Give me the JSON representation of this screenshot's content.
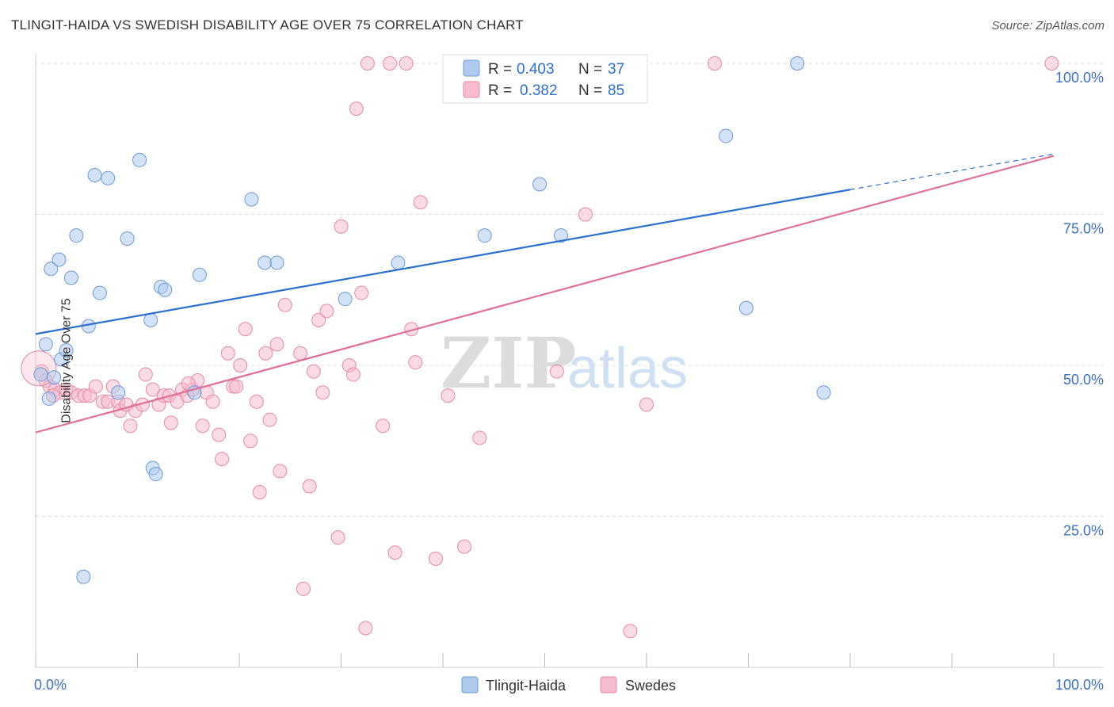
{
  "header": {
    "title": "TLINGIT-HAIDA VS SWEDISH DISABILITY AGE OVER 75 CORRELATION CHART",
    "source": "Source: ZipAtlas.com"
  },
  "watermark": {
    "zip": "ZIP",
    "atlas": "atlas"
  },
  "colors": {
    "blue_fill": "#aecbee",
    "blue_stroke": "#6d9ad6",
    "blue_line": "#2b6fcf",
    "pink_fill": "#f6bccd",
    "pink_stroke": "#e58aa6",
    "pink_line": "#e0709a",
    "tick_text": "#3b6fc0",
    "grid": "#dddddd"
  },
  "legend_top": {
    "rows": [
      {
        "r_label": "R = ",
        "r_value": "0.403",
        "n_label": "N = ",
        "n_value": "37"
      },
      {
        "r_label": "R = ",
        "r_value": "0.382",
        "n_label": "N = ",
        "n_value": "85"
      }
    ]
  },
  "chart_data": {
    "type": "scatter",
    "title": "TLINGIT-HAIDA VS SWEDISH DISABILITY AGE OVER 75 CORRELATION CHART",
    "xlabel": "",
    "ylabel": "Disability Age Over 75",
    "xlim": [
      0,
      100
    ],
    "ylim": [
      0,
      100
    ],
    "x_tick_labels": [
      "0.0%",
      "100.0%"
    ],
    "y_ticks": [
      25,
      50,
      75,
      100
    ],
    "y_tick_labels": [
      "25.0%",
      "50.0%",
      "75.0%",
      "100.0%"
    ],
    "grid": true,
    "legend_position": "bottom-center",
    "series": [
      {
        "name": "Tlingit-Haida",
        "color": "#aecbee",
        "trend": {
          "x": [
            0,
            80
          ],
          "y": [
            55.2,
            79.1
          ],
          "dashed_to": [
            100,
            85.0
          ]
        },
        "points": [
          [
            0.5,
            48.5
          ],
          [
            1.0,
            53.5
          ],
          [
            1.3,
            44.5
          ],
          [
            1.8,
            48.0
          ],
          [
            2.5,
            51.0
          ],
          [
            3.0,
            52.5
          ],
          [
            1.5,
            66.0
          ],
          [
            2.3,
            67.5
          ],
          [
            3.5,
            64.5
          ],
          [
            4.0,
            71.5
          ],
          [
            5.2,
            56.5
          ],
          [
            6.3,
            62.0
          ],
          [
            5.8,
            81.5
          ],
          [
            7.1,
            81.0
          ],
          [
            9.0,
            71.0
          ],
          [
            10.2,
            84.0
          ],
          [
            11.3,
            57.5
          ],
          [
            11.5,
            33.0
          ],
          [
            11.8,
            32.0
          ],
          [
            12.3,
            63.0
          ],
          [
            12.7,
            62.5
          ],
          [
            15.6,
            45.5
          ],
          [
            16.1,
            65.0
          ],
          [
            21.2,
            77.5
          ],
          [
            22.5,
            67.0
          ],
          [
            23.7,
            67.0
          ],
          [
            30.4,
            61.0
          ],
          [
            35.6,
            67.0
          ],
          [
            44.1,
            71.5
          ],
          [
            49.5,
            80.0
          ],
          [
            51.6,
            71.5
          ],
          [
            67.8,
            88.0
          ],
          [
            69.8,
            59.5
          ],
          [
            74.8,
            100.0
          ],
          [
            77.4,
            45.5
          ],
          [
            4.7,
            15.0
          ],
          [
            8.1,
            45.5
          ]
        ]
      },
      {
        "name": "Swedes",
        "color": "#f6bccd",
        "trend": {
          "x": [
            0,
            100
          ],
          "y": [
            38.9,
            84.7
          ]
        },
        "points": [
          [
            0.6,
            49.0
          ],
          [
            1.0,
            47.5
          ],
          [
            1.4,
            46.5
          ],
          [
            1.9,
            46.0
          ],
          [
            2.4,
            45.5
          ],
          [
            3.0,
            46.0
          ],
          [
            3.5,
            45.5
          ],
          [
            4.2,
            45.0
          ],
          [
            4.8,
            45.0
          ],
          [
            5.3,
            45.0
          ],
          [
            5.9,
            46.5
          ],
          [
            6.6,
            44.0
          ],
          [
            7.1,
            44.0
          ],
          [
            7.6,
            46.5
          ],
          [
            8.1,
            44.0
          ],
          [
            8.3,
            42.5
          ],
          [
            8.9,
            43.5
          ],
          [
            9.3,
            40.0
          ],
          [
            9.8,
            42.5
          ],
          [
            10.5,
            43.5
          ],
          [
            10.8,
            48.5
          ],
          [
            11.5,
            46.0
          ],
          [
            12.1,
            43.5
          ],
          [
            12.6,
            45.0
          ],
          [
            13.1,
            45.0
          ],
          [
            13.3,
            40.5
          ],
          [
            13.9,
            44.0
          ],
          [
            14.4,
            46.0
          ],
          [
            14.9,
            45.0
          ],
          [
            15.4,
            46.0
          ],
          [
            15.9,
            47.5
          ],
          [
            16.4,
            40.0
          ],
          [
            16.8,
            45.5
          ],
          [
            17.4,
            44.0
          ],
          [
            18.0,
            38.5
          ],
          [
            18.3,
            34.5
          ],
          [
            18.9,
            52.0
          ],
          [
            19.4,
            46.5
          ],
          [
            19.7,
            46.5
          ],
          [
            20.1,
            50.0
          ],
          [
            20.6,
            56.0
          ],
          [
            21.1,
            37.5
          ],
          [
            21.7,
            44.0
          ],
          [
            22.0,
            29.0
          ],
          [
            22.6,
            52.0
          ],
          [
            23.0,
            41.0
          ],
          [
            23.7,
            53.5
          ],
          [
            24.0,
            32.5
          ],
          [
            24.5,
            60.0
          ],
          [
            26.0,
            52.0
          ],
          [
            26.3,
            13.0
          ],
          [
            26.9,
            30.0
          ],
          [
            27.3,
            49.0
          ],
          [
            27.8,
            57.5
          ],
          [
            28.2,
            45.5
          ],
          [
            28.6,
            59.0
          ],
          [
            29.7,
            21.5
          ],
          [
            30.0,
            73.0
          ],
          [
            30.8,
            50.0
          ],
          [
            31.2,
            48.5
          ],
          [
            32.0,
            62.0
          ],
          [
            32.4,
            6.5
          ],
          [
            32.6,
            100.0
          ],
          [
            31.5,
            92.5
          ],
          [
            34.1,
            40.0
          ],
          [
            34.8,
            100.0
          ],
          [
            35.3,
            19.0
          ],
          [
            36.4,
            100.0
          ],
          [
            36.9,
            56.0
          ],
          [
            37.3,
            50.5
          ],
          [
            37.8,
            77.0
          ],
          [
            39.3,
            18.0
          ],
          [
            40.5,
            45.0
          ],
          [
            42.1,
            20.0
          ],
          [
            43.6,
            38.0
          ],
          [
            48.8,
            100.0
          ],
          [
            51.2,
            49.0
          ],
          [
            54.0,
            75.0
          ],
          [
            58.4,
            6.0
          ],
          [
            60.0,
            43.5
          ],
          [
            66.7,
            100.0
          ],
          [
            99.8,
            100.0
          ],
          [
            0.3,
            49.5
          ],
          [
            15.0,
            47.0
          ],
          [
            1.7,
            45.0
          ]
        ]
      }
    ]
  }
}
